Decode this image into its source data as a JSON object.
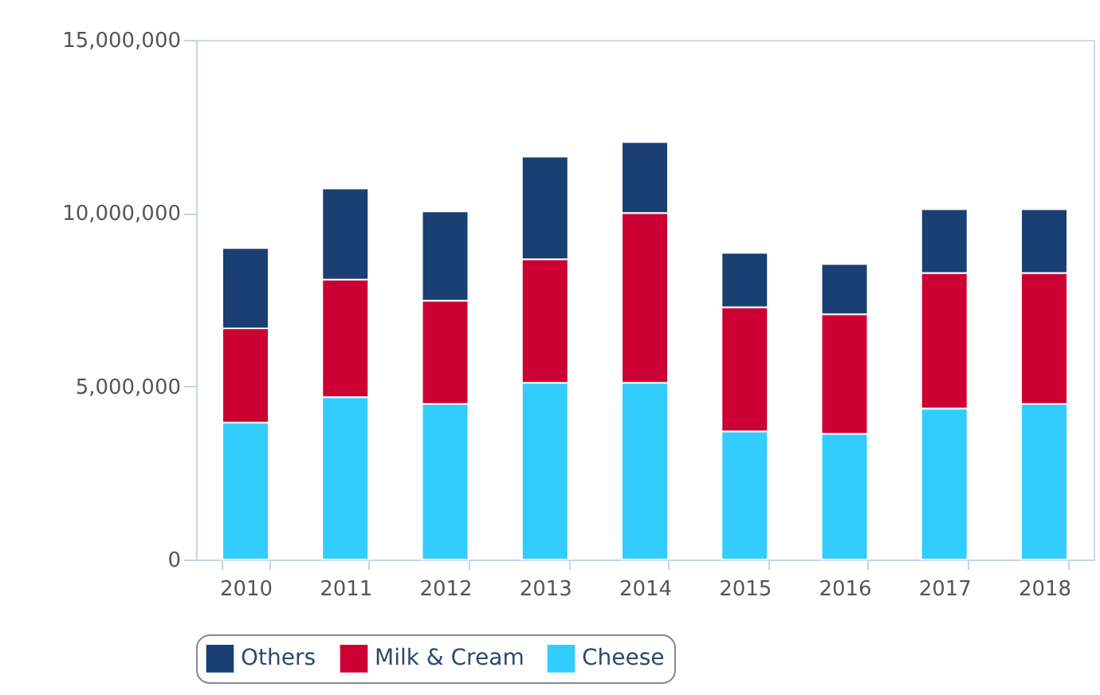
{
  "chart_data": {
    "type": "bar",
    "stacked": true,
    "categories": [
      "2010",
      "2011",
      "2012",
      "2013",
      "2014",
      "2015",
      "2016",
      "2017",
      "2018"
    ],
    "series": [
      {
        "name": "Cheese",
        "color": "#33ccff",
        "values": [
          3950000,
          4690000,
          4490000,
          5100000,
          5100000,
          3700000,
          3630000,
          4360000,
          4490000
        ]
      },
      {
        "name": "Milk & Cream",
        "color": "#cc0033",
        "values": [
          2720000,
          3390000,
          2980000,
          3570000,
          4900000,
          3580000,
          3450000,
          3910000,
          3780000
        ]
      },
      {
        "name": "Others",
        "color": "#1a3f73",
        "values": [
          2320000,
          2630000,
          2580000,
          2960000,
          2050000,
          1570000,
          1450000,
          1840000,
          1840000
        ]
      }
    ],
    "ylim": [
      0,
      15000000
    ],
    "yticks": [
      {
        "value": 0,
        "label": "0"
      },
      {
        "value": 5000000,
        "label": "5,000,000"
      },
      {
        "value": 10000000,
        "label": "10,000,000"
      },
      {
        "value": 15000000,
        "label": "15,000,000"
      }
    ],
    "legend": "bottom"
  }
}
